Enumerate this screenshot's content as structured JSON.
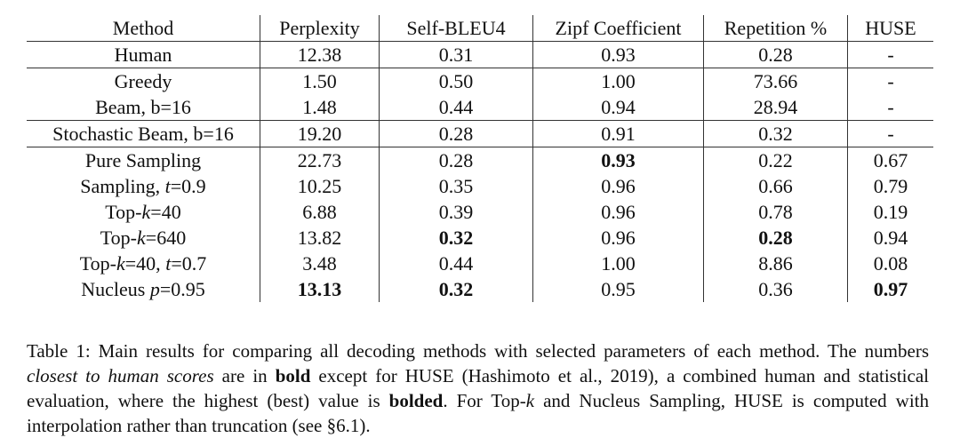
{
  "table": {
    "headers": [
      "Method",
      "Perplexity",
      "Self-BLEU4",
      "Zipf Coefficient",
      "Repetition %",
      "HUSE"
    ],
    "rows": [
      {
        "method": [
          {
            "text": "Human"
          }
        ],
        "values": [
          "12.38",
          "0.31",
          "0.93",
          "0.28",
          "-"
        ],
        "bold": [
          false,
          false,
          false,
          false,
          false
        ],
        "rule_below": true
      },
      {
        "method": [
          {
            "text": "Greedy"
          }
        ],
        "values": [
          "1.50",
          "0.50",
          "1.00",
          "73.66",
          "-"
        ],
        "bold": [
          false,
          false,
          false,
          false,
          false
        ],
        "rule_below": false
      },
      {
        "method": [
          {
            "text": "Beam, b=16"
          }
        ],
        "values": [
          "1.48",
          "0.44",
          "0.94",
          "28.94",
          "-"
        ],
        "bold": [
          false,
          false,
          false,
          false,
          false
        ],
        "rule_below": true
      },
      {
        "method": [
          {
            "text": "Stochastic Beam, b=16"
          }
        ],
        "values": [
          "19.20",
          "0.28",
          "0.91",
          "0.32",
          "-"
        ],
        "bold": [
          false,
          false,
          false,
          false,
          false
        ],
        "rule_below": true
      },
      {
        "method": [
          {
            "text": "Pure Sampling"
          }
        ],
        "values": [
          "22.73",
          "0.28",
          "0.93",
          "0.22",
          "0.67"
        ],
        "bold": [
          false,
          false,
          true,
          false,
          false
        ],
        "rule_below": false
      },
      {
        "method": [
          {
            "text": "Sampling, "
          },
          {
            "text": "t",
            "italic": true
          },
          {
            "text": "=0.9"
          }
        ],
        "values": [
          "10.25",
          "0.35",
          "0.96",
          "0.66",
          "0.79"
        ],
        "bold": [
          false,
          false,
          false,
          false,
          false
        ],
        "rule_below": false
      },
      {
        "method": [
          {
            "text": "Top-"
          },
          {
            "text": "k",
            "italic": true
          },
          {
            "text": "=40"
          }
        ],
        "values": [
          "6.88",
          "0.39",
          "0.96",
          "0.78",
          "0.19"
        ],
        "bold": [
          false,
          false,
          false,
          false,
          false
        ],
        "rule_below": false
      },
      {
        "method": [
          {
            "text": "Top-"
          },
          {
            "text": "k",
            "italic": true
          },
          {
            "text": "=640"
          }
        ],
        "values": [
          "13.82",
          "0.32",
          "0.96",
          "0.28",
          "0.94"
        ],
        "bold": [
          false,
          true,
          false,
          true,
          false
        ],
        "rule_below": false
      },
      {
        "method": [
          {
            "text": "Top-"
          },
          {
            "text": "k",
            "italic": true
          },
          {
            "text": "=40, "
          },
          {
            "text": "t",
            "italic": true
          },
          {
            "text": "=0.7"
          }
        ],
        "values": [
          "3.48",
          "0.44",
          "1.00",
          "8.86",
          "0.08"
        ],
        "bold": [
          false,
          false,
          false,
          false,
          false
        ],
        "rule_below": false
      },
      {
        "method": [
          {
            "text": "Nucleus "
          },
          {
            "text": "p",
            "italic": true
          },
          {
            "text": "=0.95"
          }
        ],
        "values": [
          "13.13",
          "0.32",
          "0.95",
          "0.36",
          "0.97"
        ],
        "bold": [
          true,
          true,
          false,
          false,
          true
        ],
        "rule_below": false
      }
    ]
  },
  "caption": [
    {
      "text": "Table 1: Main results for comparing all decoding methods with selected parameters of each method. The numbers "
    },
    {
      "text": "closest to human scores",
      "italic": true
    },
    {
      "text": " are in "
    },
    {
      "text": "bold",
      "bold": true
    },
    {
      "text": " except for HUSE (Hashimoto et al., 2019), a combined human and statistical evaluation, where the highest (best) value is "
    },
    {
      "text": "bolded",
      "bold": true
    },
    {
      "text": ". For Top-"
    },
    {
      "text": "k",
      "italic": true
    },
    {
      "text": " and Nucleus Sampling, HUSE is computed with interpolation rather than truncation (see §6.1)."
    }
  ]
}
